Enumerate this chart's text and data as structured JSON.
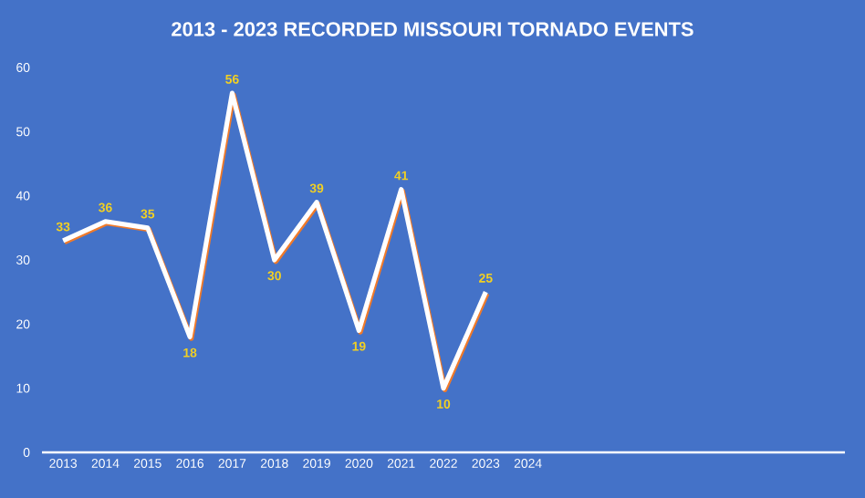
{
  "chart_data": {
    "type": "line",
    "title": "2013 - 2023 RECORDED MISSOURI TORNADO EVENTS",
    "categories": [
      "2013",
      "2014",
      "2015",
      "2016",
      "2017",
      "2018",
      "2019",
      "2020",
      "2021",
      "2022",
      "2023",
      "2024",
      null,
      null,
      null,
      null,
      null,
      null,
      null
    ],
    "series": [
      {
        "color": "#ffffff",
        "values": [
          33,
          36,
          35,
          18,
          56,
          30,
          39,
          19,
          41,
          10,
          25,
          null,
          null,
          null,
          null,
          null,
          null,
          null,
          null
        ]
      }
    ],
    "ylim": [
      0,
      60
    ],
    "yticks": [
      0,
      10,
      20,
      30,
      40,
      50,
      60
    ],
    "grid": false,
    "data_labels": true,
    "marker": "none",
    "line_style": "solid"
  }
}
